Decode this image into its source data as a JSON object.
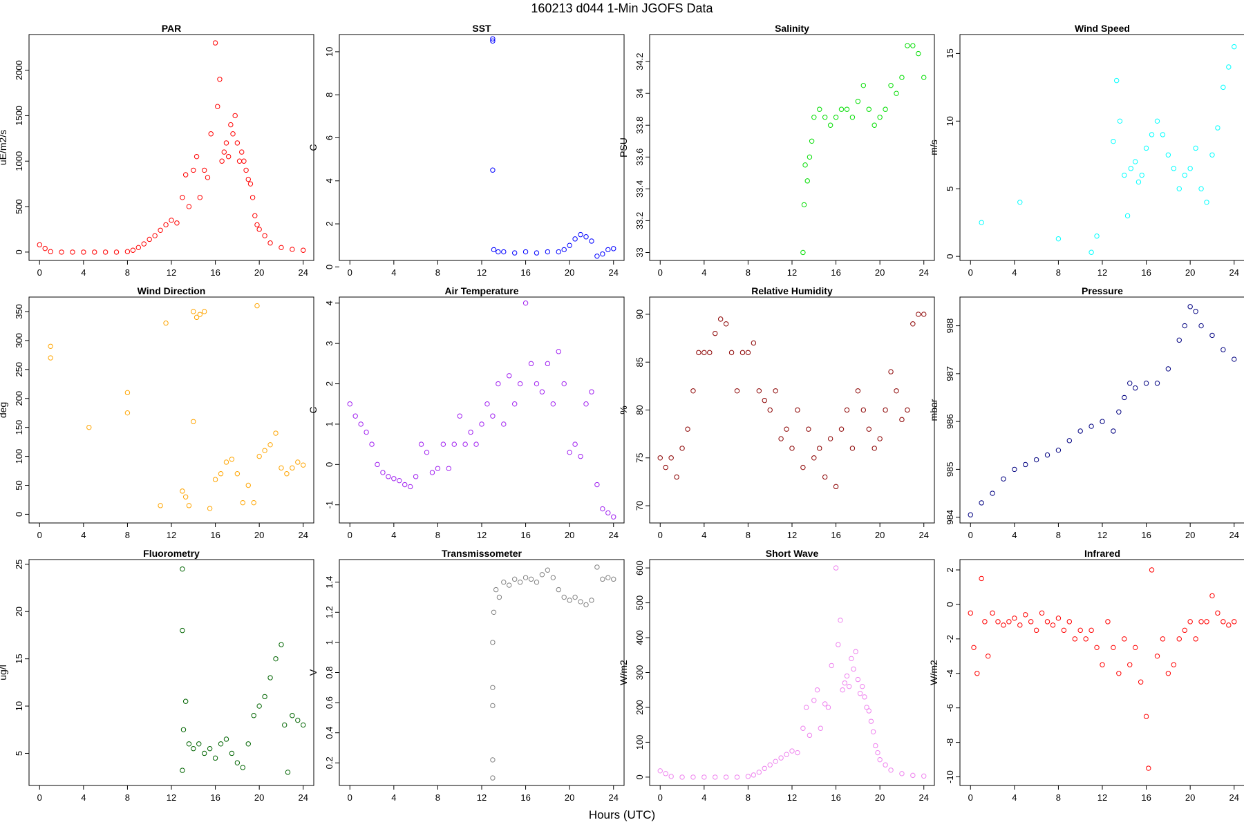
{
  "page": {
    "title": "160213   d044   1-Min  JGOFS Data",
    "xlabel": "Hours (UTC)"
  },
  "chart_data": [
    {
      "type": "scatter",
      "title": "PAR",
      "ylabel": "uE/m2/s",
      "color": "#ff0000",
      "xlim": [
        -0.96,
        24.96
      ],
      "ylim": [
        -92,
        2392
      ],
      "xticks": [
        0,
        4,
        8,
        12,
        16,
        20,
        24
      ],
      "yticks": [
        0,
        500,
        1000,
        1500,
        2000
      ],
      "x": [
        0,
        0.5,
        1,
        2,
        3,
        4,
        5,
        6,
        7,
        8,
        8.5,
        9,
        9.5,
        10,
        10.5,
        11,
        11.5,
        12,
        12.5,
        13,
        13.3,
        13.6,
        14,
        14.3,
        14.6,
        15,
        15.3,
        15.6,
        16,
        16.2,
        16.4,
        16.6,
        16.8,
        17,
        17.2,
        17.4,
        17.6,
        17.8,
        18,
        18.2,
        18.4,
        18.6,
        18.8,
        19,
        19.2,
        19.4,
        19.6,
        19.8,
        20,
        20.5,
        21,
        22,
        23,
        24
      ],
      "y": [
        80,
        40,
        5,
        0,
        0,
        0,
        0,
        0,
        0,
        5,
        20,
        50,
        90,
        140,
        180,
        240,
        300,
        350,
        320,
        600,
        850,
        500,
        900,
        1050,
        600,
        900,
        820,
        1300,
        2300,
        1600,
        1900,
        1000,
        1100,
        1200,
        1050,
        1400,
        1300,
        1500,
        1200,
        1000,
        1100,
        1000,
        900,
        800,
        750,
        600,
        400,
        300,
        250,
        180,
        100,
        50,
        30,
        20
      ]
    },
    {
      "type": "scatter",
      "title": "SST",
      "ylabel": "C",
      "color": "#0000ff",
      "xlim": [
        -0.96,
        24.96
      ],
      "ylim": [
        0.3,
        10.8
      ],
      "xticks": [
        0,
        4,
        8,
        12,
        16,
        20,
        24
      ],
      "yticks": [
        0,
        2,
        4,
        6,
        8,
        10
      ],
      "x": [
        13,
        13,
        13,
        13.1,
        13.5,
        14,
        15,
        16,
        17,
        18,
        19,
        19.5,
        20,
        20.5,
        21,
        21.5,
        22,
        22.5,
        23,
        23.5,
        24
      ],
      "y": [
        10.6,
        10.5,
        4.5,
        0.8,
        0.7,
        0.7,
        0.65,
        0.7,
        0.65,
        0.7,
        0.7,
        0.8,
        1.0,
        1.3,
        1.5,
        1.4,
        1.2,
        0.5,
        0.6,
        0.8,
        0.85
      ]
    },
    {
      "type": "scatter",
      "title": "Salinity",
      "ylabel": "PSU",
      "color": "#00dd00",
      "xlim": [
        -0.96,
        24.96
      ],
      "ylim": [
        32.95,
        34.37
      ],
      "xticks": [
        0,
        4,
        8,
        12,
        16,
        20,
        24
      ],
      "yticks": [
        33.0,
        33.2,
        33.4,
        33.6,
        33.8,
        34.0,
        34.2
      ],
      "x": [
        13,
        13.1,
        13.2,
        13.4,
        13.6,
        13.8,
        14,
        14.5,
        15,
        15.5,
        16,
        16.5,
        17,
        17.5,
        18,
        18.5,
        19,
        19.5,
        20,
        20.5,
        21,
        21.5,
        22,
        22.5,
        23,
        23.5,
        24
      ],
      "y": [
        33.0,
        33.3,
        33.55,
        33.45,
        33.6,
        33.7,
        33.85,
        33.9,
        33.85,
        33.8,
        33.85,
        33.9,
        33.9,
        33.85,
        33.95,
        34.05,
        33.9,
        33.8,
        33.85,
        33.9,
        34.05,
        34.0,
        34.1,
        34.3,
        34.3,
        34.25,
        34.1
      ]
    },
    {
      "type": "scatter",
      "title": "Wind Speed",
      "ylabel": "m/s",
      "color": "#00ffff",
      "xlim": [
        -0.96,
        24.96
      ],
      "ylim": [
        -0.3,
        16.4
      ],
      "xticks": [
        0,
        4,
        8,
        12,
        16,
        20,
        24
      ],
      "yticks": [
        0,
        5,
        10,
        15
      ],
      "x": [
        1,
        4.5,
        8,
        11,
        11.5,
        13,
        13.3,
        13.6,
        14,
        14.3,
        14.6,
        15,
        15.3,
        15.6,
        16,
        16.5,
        17,
        17.5,
        18,
        18.5,
        19,
        19.5,
        20,
        20.5,
        21,
        21.5,
        22,
        22.5,
        23,
        23.5,
        24
      ],
      "y": [
        2.5,
        4.0,
        1.3,
        0.3,
        1.5,
        8.5,
        13.0,
        10.0,
        6.0,
        3.0,
        6.5,
        7.0,
        5.5,
        6.0,
        8.0,
        9.0,
        10.0,
        9.0,
        7.5,
        6.5,
        5.0,
        6.0,
        6.5,
        8.0,
        5.0,
        4.0,
        7.5,
        9.5,
        12.5,
        14.0,
        15.5
      ]
    },
    {
      "type": "scatter",
      "title": "Wind Direction",
      "ylabel": "deg",
      "color": "#ffa500",
      "xlim": [
        -0.96,
        24.96
      ],
      "ylim": [
        -15,
        375
      ],
      "xticks": [
        0,
        4,
        8,
        12,
        16,
        20,
        24
      ],
      "yticks": [
        0,
        50,
        100,
        150,
        200,
        250,
        300,
        350
      ],
      "x": [
        1,
        1,
        4.5,
        8,
        8,
        11,
        11.5,
        13,
        13.3,
        13.6,
        14,
        14,
        14.3,
        14.6,
        15,
        15.5,
        16,
        16.5,
        17,
        17.5,
        18,
        18.5,
        19,
        19.5,
        19.8,
        20,
        20.5,
        21,
        21.5,
        22,
        22.5,
        23,
        23.5,
        24
      ],
      "y": [
        290,
        270,
        150,
        210,
        175,
        15,
        330,
        40,
        30,
        15,
        350,
        160,
        340,
        345,
        350,
        10,
        60,
        70,
        90,
        95,
        70,
        20,
        50,
        20,
        360,
        100,
        110,
        120,
        140,
        80,
        70,
        80,
        90,
        85
      ]
    },
    {
      "type": "scatter",
      "title": "Air Temperature",
      "ylabel": "C",
      "color": "#a020f0",
      "xlim": [
        -0.96,
        24.96
      ],
      "ylim": [
        -1.45,
        4.15
      ],
      "xticks": [
        0,
        4,
        8,
        12,
        16,
        20,
        24
      ],
      "yticks": [
        -1,
        0,
        1,
        2,
        3,
        4
      ],
      "x": [
        0,
        0.5,
        1,
        1.5,
        2,
        2.5,
        3,
        3.5,
        4,
        4.5,
        5,
        5.5,
        6,
        6.5,
        7,
        7.5,
        8,
        8.5,
        9,
        9.5,
        10,
        10.5,
        11,
        11.5,
        12,
        12.5,
        13,
        13.5,
        14,
        14.5,
        15,
        15.5,
        16,
        16.5,
        17,
        17.5,
        18,
        18.5,
        19,
        19.5,
        20,
        20.5,
        21,
        21.5,
        22,
        22.5,
        23,
        23.5,
        24
      ],
      "y": [
        1.5,
        1.2,
        1.0,
        0.8,
        0.5,
        0.0,
        -0.2,
        -0.3,
        -0.35,
        -0.4,
        -0.5,
        -0.55,
        -0.3,
        0.5,
        0.3,
        -0.2,
        -0.1,
        0.5,
        -0.1,
        0.5,
        1.2,
        0.5,
        0.8,
        0.5,
        1.0,
        1.5,
        1.2,
        2.0,
        1.0,
        2.2,
        1.5,
        2.0,
        4.0,
        2.5,
        2.0,
        1.8,
        2.5,
        1.5,
        2.8,
        2.0,
        0.3,
        0.5,
        0.2,
        1.5,
        1.8,
        -0.5,
        -1.1,
        -1.2,
        -1.3
      ]
    },
    {
      "type": "scatter",
      "title": "Relative Humidity",
      "ylabel": "%",
      "color": "#8b0000",
      "xlim": [
        -0.96,
        24.96
      ],
      "ylim": [
        68.2,
        91.8
      ],
      "xticks": [
        0,
        4,
        8,
        12,
        16,
        20,
        24
      ],
      "yticks": [
        70,
        75,
        80,
        85,
        90
      ],
      "x": [
        0,
        0.5,
        1,
        1.5,
        2,
        2.5,
        3,
        3.5,
        4,
        4.5,
        5,
        5.5,
        6,
        6.5,
        7,
        7.5,
        8,
        8.5,
        9,
        9.5,
        10,
        10.5,
        11,
        11.5,
        12,
        12.5,
        13,
        13.5,
        14,
        14.5,
        15,
        15.5,
        16,
        16.5,
        17,
        17.5,
        18,
        18.5,
        19,
        19.5,
        20,
        20.5,
        21,
        21.5,
        22,
        22.5,
        23,
        23.5,
        24
      ],
      "y": [
        75,
        74,
        75,
        73,
        76,
        78,
        82,
        86,
        86,
        86,
        88,
        89.5,
        89,
        86,
        82,
        86,
        86,
        87,
        82,
        81,
        80,
        82,
        77,
        78,
        76,
        80,
        74,
        78,
        75,
        76,
        73,
        77,
        72,
        78,
        80,
        76,
        82,
        80,
        78,
        76,
        77,
        80,
        84,
        82,
        79,
        80,
        89,
        90,
        90
      ]
    },
    {
      "type": "scatter",
      "title": "Pressure",
      "ylabel": "mbar",
      "color": "#000080",
      "xlim": [
        -0.96,
        24.96
      ],
      "ylim": [
        983.88,
        988.6
      ],
      "xticks": [
        0,
        4,
        8,
        12,
        16,
        20,
        24
      ],
      "yticks": [
        984,
        985,
        986,
        987,
        988
      ],
      "x": [
        0,
        1,
        2,
        3,
        4,
        5,
        6,
        7,
        8,
        9,
        10,
        11,
        12,
        13,
        13.5,
        14,
        14.5,
        15,
        16,
        17,
        18,
        19,
        19.5,
        20,
        20.5,
        21,
        22,
        23,
        24
      ],
      "y": [
        984.05,
        984.3,
        984.5,
        984.8,
        985.0,
        985.1,
        985.2,
        985.3,
        985.4,
        985.6,
        985.8,
        985.9,
        986.0,
        985.8,
        986.2,
        986.5,
        986.8,
        986.7,
        986.8,
        986.8,
        987.1,
        987.7,
        988.0,
        988.4,
        988.3,
        988.0,
        987.8,
        987.5,
        987.3
      ]
    },
    {
      "type": "scatter",
      "title": "Fluorometry",
      "ylabel": "ug/l",
      "color": "#006400",
      "xlim": [
        -0.96,
        24.96
      ],
      "ylim": [
        1.6,
        25.5
      ],
      "xticks": [
        0,
        4,
        8,
        12,
        16,
        20,
        24
      ],
      "yticks": [
        5,
        10,
        15,
        20,
        25
      ],
      "x": [
        13,
        13,
        13,
        13.1,
        13.3,
        13.6,
        14,
        14.5,
        15,
        15.5,
        16,
        16.5,
        17,
        17.5,
        18,
        18.5,
        19,
        19.5,
        20,
        20.5,
        21,
        21.5,
        22,
        22.3,
        22.6,
        23,
        23.5,
        24
      ],
      "y": [
        24.5,
        18,
        3.2,
        7.5,
        10.5,
        6.0,
        5.5,
        6.0,
        5.0,
        5.5,
        4.5,
        6.0,
        6.5,
        5.0,
        4.0,
        3.5,
        6.0,
        9.0,
        10.0,
        11.0,
        13.0,
        15.0,
        16.5,
        8.0,
        3.0,
        9.0,
        8.5,
        8.0
      ]
    },
    {
      "type": "scatter",
      "title": "Transmissometer",
      "ylabel": "V",
      "color": "#808080",
      "xlim": [
        -0.96,
        24.96
      ],
      "ylim": [
        0.05,
        1.55
      ],
      "xticks": [
        0,
        4,
        8,
        12,
        16,
        20,
        24
      ],
      "yticks": [
        0.2,
        0.4,
        0.6,
        0.8,
        1.0,
        1.2,
        1.4
      ],
      "x": [
        13,
        13,
        13,
        13,
        13,
        13.1,
        13.3,
        13.6,
        14,
        14.5,
        15,
        15.5,
        16,
        16.5,
        17,
        17.5,
        18,
        18.5,
        19,
        19.5,
        20,
        20.5,
        21,
        21.5,
        22,
        22.5,
        23,
        23.5,
        24
      ],
      "y": [
        0.1,
        0.22,
        0.58,
        0.7,
        1.0,
        1.2,
        1.35,
        1.3,
        1.4,
        1.38,
        1.42,
        1.4,
        1.43,
        1.42,
        1.4,
        1.45,
        1.48,
        1.43,
        1.35,
        1.3,
        1.28,
        1.3,
        1.27,
        1.25,
        1.28,
        1.5,
        1.42,
        1.43,
        1.42
      ]
    },
    {
      "type": "scatter",
      "title": "Short Wave",
      "ylabel": "W/m2",
      "color": "#ee82ee",
      "xlim": [
        -0.96,
        24.96
      ],
      "ylim": [
        -24,
        624
      ],
      "xticks": [
        0,
        4,
        8,
        12,
        16,
        20,
        24
      ],
      "yticks": [
        0,
        100,
        200,
        300,
        400,
        500,
        600
      ],
      "x": [
        0,
        0.5,
        1,
        2,
        3,
        4,
        5,
        6,
        7,
        8,
        8.5,
        9,
        9.5,
        10,
        10.5,
        11,
        11.5,
        12,
        12.5,
        13,
        13.3,
        13.6,
        14,
        14.3,
        14.6,
        15,
        15.3,
        15.6,
        16,
        16.2,
        16.4,
        16.6,
        16.8,
        17,
        17.2,
        17.4,
        17.6,
        17.8,
        18,
        18.2,
        18.4,
        18.6,
        18.8,
        19,
        19.2,
        19.4,
        19.6,
        19.8,
        20,
        20.5,
        21,
        22,
        23,
        24
      ],
      "y": [
        18,
        10,
        2,
        0,
        0,
        0,
        0,
        0,
        0,
        2,
        6,
        14,
        25,
        35,
        45,
        55,
        65,
        75,
        70,
        140,
        200,
        120,
        220,
        250,
        140,
        210,
        200,
        320,
        600,
        380,
        450,
        250,
        270,
        290,
        260,
        340,
        310,
        360,
        280,
        240,
        260,
        230,
        200,
        190,
        160,
        130,
        90,
        70,
        50,
        35,
        20,
        10,
        5,
        3
      ]
    },
    {
      "type": "scatter",
      "title": "Infrared",
      "ylabel": "W/m2",
      "color": "#ff0000",
      "xlim": [
        -0.96,
        24.96
      ],
      "ylim": [
        -10.5,
        2.6
      ],
      "xticks": [
        0,
        4,
        8,
        12,
        16,
        20,
        24
      ],
      "yticks": [
        -10,
        -8,
        -6,
        -4,
        -2,
        0,
        2
      ],
      "x": [
        0,
        0.3,
        0.6,
        1,
        1.3,
        1.6,
        2,
        2.5,
        3,
        3.5,
        4,
        4.5,
        5,
        5.5,
        6,
        6.5,
        7,
        7.5,
        8,
        8.5,
        9,
        9.5,
        10,
        10.5,
        11,
        11.5,
        12,
        12.5,
        13,
        13.5,
        14,
        14.5,
        15,
        15.5,
        16,
        16.2,
        16.5,
        17,
        17.5,
        18,
        18.5,
        19,
        19.5,
        20,
        20.5,
        21,
        21.5,
        22,
        22.5,
        23,
        23.5,
        24
      ],
      "y": [
        -0.5,
        -2.5,
        -4.0,
        1.5,
        -1.0,
        -3.0,
        -0.5,
        -1.0,
        -1.2,
        -1.0,
        -0.8,
        -1.2,
        -0.6,
        -1.0,
        -1.5,
        -0.5,
        -1.0,
        -1.2,
        -0.8,
        -1.5,
        -1.0,
        -2.0,
        -1.5,
        -2.0,
        -1.5,
        -2.5,
        -3.5,
        -1.0,
        -2.5,
        -4.0,
        -2.0,
        -3.5,
        -2.5,
        -4.5,
        -6.5,
        -9.5,
        2.0,
        -3.0,
        -2.0,
        -4.0,
        -3.5,
        -2.0,
        -1.5,
        -1.0,
        -2.0,
        -1.0,
        -1.0,
        0.5,
        -0.5,
        -1.0,
        -1.2,
        -1.0
      ]
    }
  ]
}
